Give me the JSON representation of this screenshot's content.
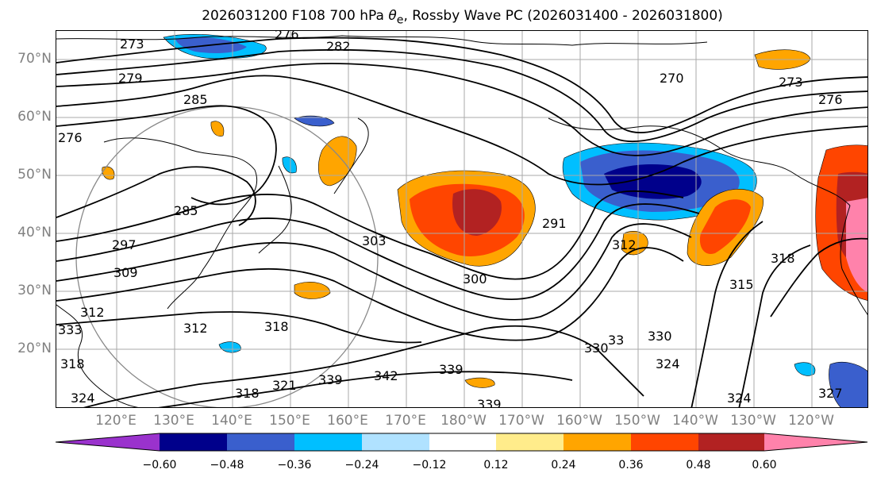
{
  "title": {
    "prefix": "2026031200 F108 700 hPa ",
    "theta": "θ",
    "theta_sub": "e",
    "suffix": ", Rossby Wave PC (2026031400 - 2026031800)"
  },
  "axes": {
    "lat_labels": [
      "70°N",
      "60°N",
      "50°N",
      "40°N",
      "30°N",
      "20°N"
    ],
    "lon_labels": [
      "120°E",
      "130°E",
      "140°E",
      "150°E",
      "160°E",
      "170°E",
      "180°W",
      "170°W",
      "160°W",
      "150°W",
      "140°W",
      "130°W",
      "120°W"
    ],
    "lat_range": [
      10,
      75
    ],
    "lon_range_east": [
      108,
      248
    ],
    "grid": true
  },
  "colorbar": {
    "tick_labels": [
      "−0.60",
      "−0.48",
      "−0.36",
      "−0.24",
      "−0.12",
      "0.12",
      "0.24",
      "0.36",
      "0.48",
      "0.60"
    ],
    "colors": [
      "#9a32cd",
      "#00008b",
      "#3a5fcd",
      "#00bfff",
      "#b0e2ff",
      "#ffffff",
      "#ffec8b",
      "#ffa500",
      "#ff4500",
      "#b22222",
      "#ff82ab"
    ],
    "extend": "both"
  },
  "contour_labels": [
    "276",
    "273",
    "282",
    "279",
    "285",
    "270",
    "273",
    "276",
    "276",
    "285",
    "297",
    "309",
    "303",
    "300",
    "291",
    "312",
    "318",
    "315",
    "312",
    "318",
    "312",
    "318",
    "321",
    "330",
    "339",
    "342",
    "339",
    "324",
    "330",
    "324",
    "327",
    "318",
    "324",
    "333",
    "339",
    "33"
  ],
  "colors": {
    "contour": "#000000",
    "coastline": "#000000",
    "grid": "#aaaaaa",
    "circle": "#888888"
  }
}
